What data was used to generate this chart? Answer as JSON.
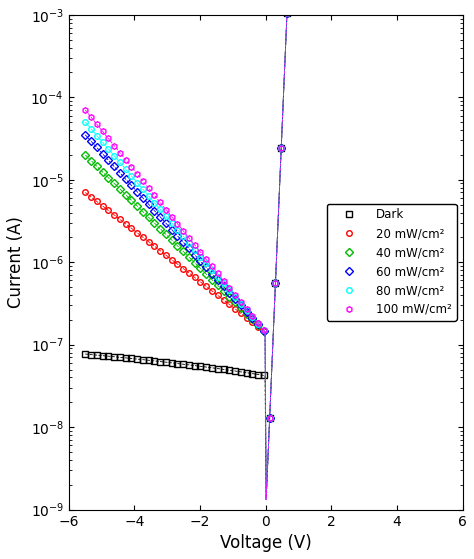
{
  "title": "",
  "xlabel": "Voltage (V)",
  "ylabel": "Current (A)",
  "xlim": [
    -6,
    6
  ],
  "ylim_log": [
    -9,
    -3
  ],
  "series": [
    {
      "label": "Dark",
      "color": "black",
      "marker": "s",
      "marker_size": 4,
      "I0": 1e-09,
      "n": 1.8,
      "Iph": 0.0,
      "Ileakage": 7e-08,
      "reverse_slope": -0.1
    },
    {
      "label": "20 mW/cm²",
      "color": "red",
      "marker": "o",
      "marker_size": 4,
      "I0": 1e-09,
      "n": 1.8,
      "Iph": 7e-06,
      "Ileakage": 7e-08,
      "reverse_slope": -0.15
    },
    {
      "label": "40 mW/cm²",
      "color": "#00bb00",
      "marker": "D",
      "marker_size": 4,
      "I0": 1e-09,
      "n": 1.8,
      "Iph": 2e-05,
      "Ileakage": 7e-08,
      "reverse_slope": -0.15
    },
    {
      "label": "60 mW/cm²",
      "color": "blue",
      "marker": "D",
      "marker_size": 4,
      "I0": 1e-09,
      "n": 1.8,
      "Iph": 3.5e-05,
      "Ileakage": 7e-08,
      "reverse_slope": -0.15
    },
    {
      "label": "80 mW/cm²",
      "color": "cyan",
      "marker": "o",
      "marker_size": 4,
      "I0": 1e-09,
      "n": 1.8,
      "Iph": 5e-05,
      "Ileakage": 7e-08,
      "reverse_slope": -0.15
    },
    {
      "label": "100 mW/cm²",
      "color": "magenta",
      "marker": "h",
      "marker_size": 4,
      "I0": 1e-09,
      "n": 1.8,
      "Iph": 7e-05,
      "Ileakage": 7e-08,
      "reverse_slope": -0.15
    }
  ],
  "legend_loc": "center right",
  "figsize": [
    4.74,
    5.59
  ],
  "dpi": 100,
  "VT": 0.02585,
  "n_points": 300,
  "n_markers": 55
}
